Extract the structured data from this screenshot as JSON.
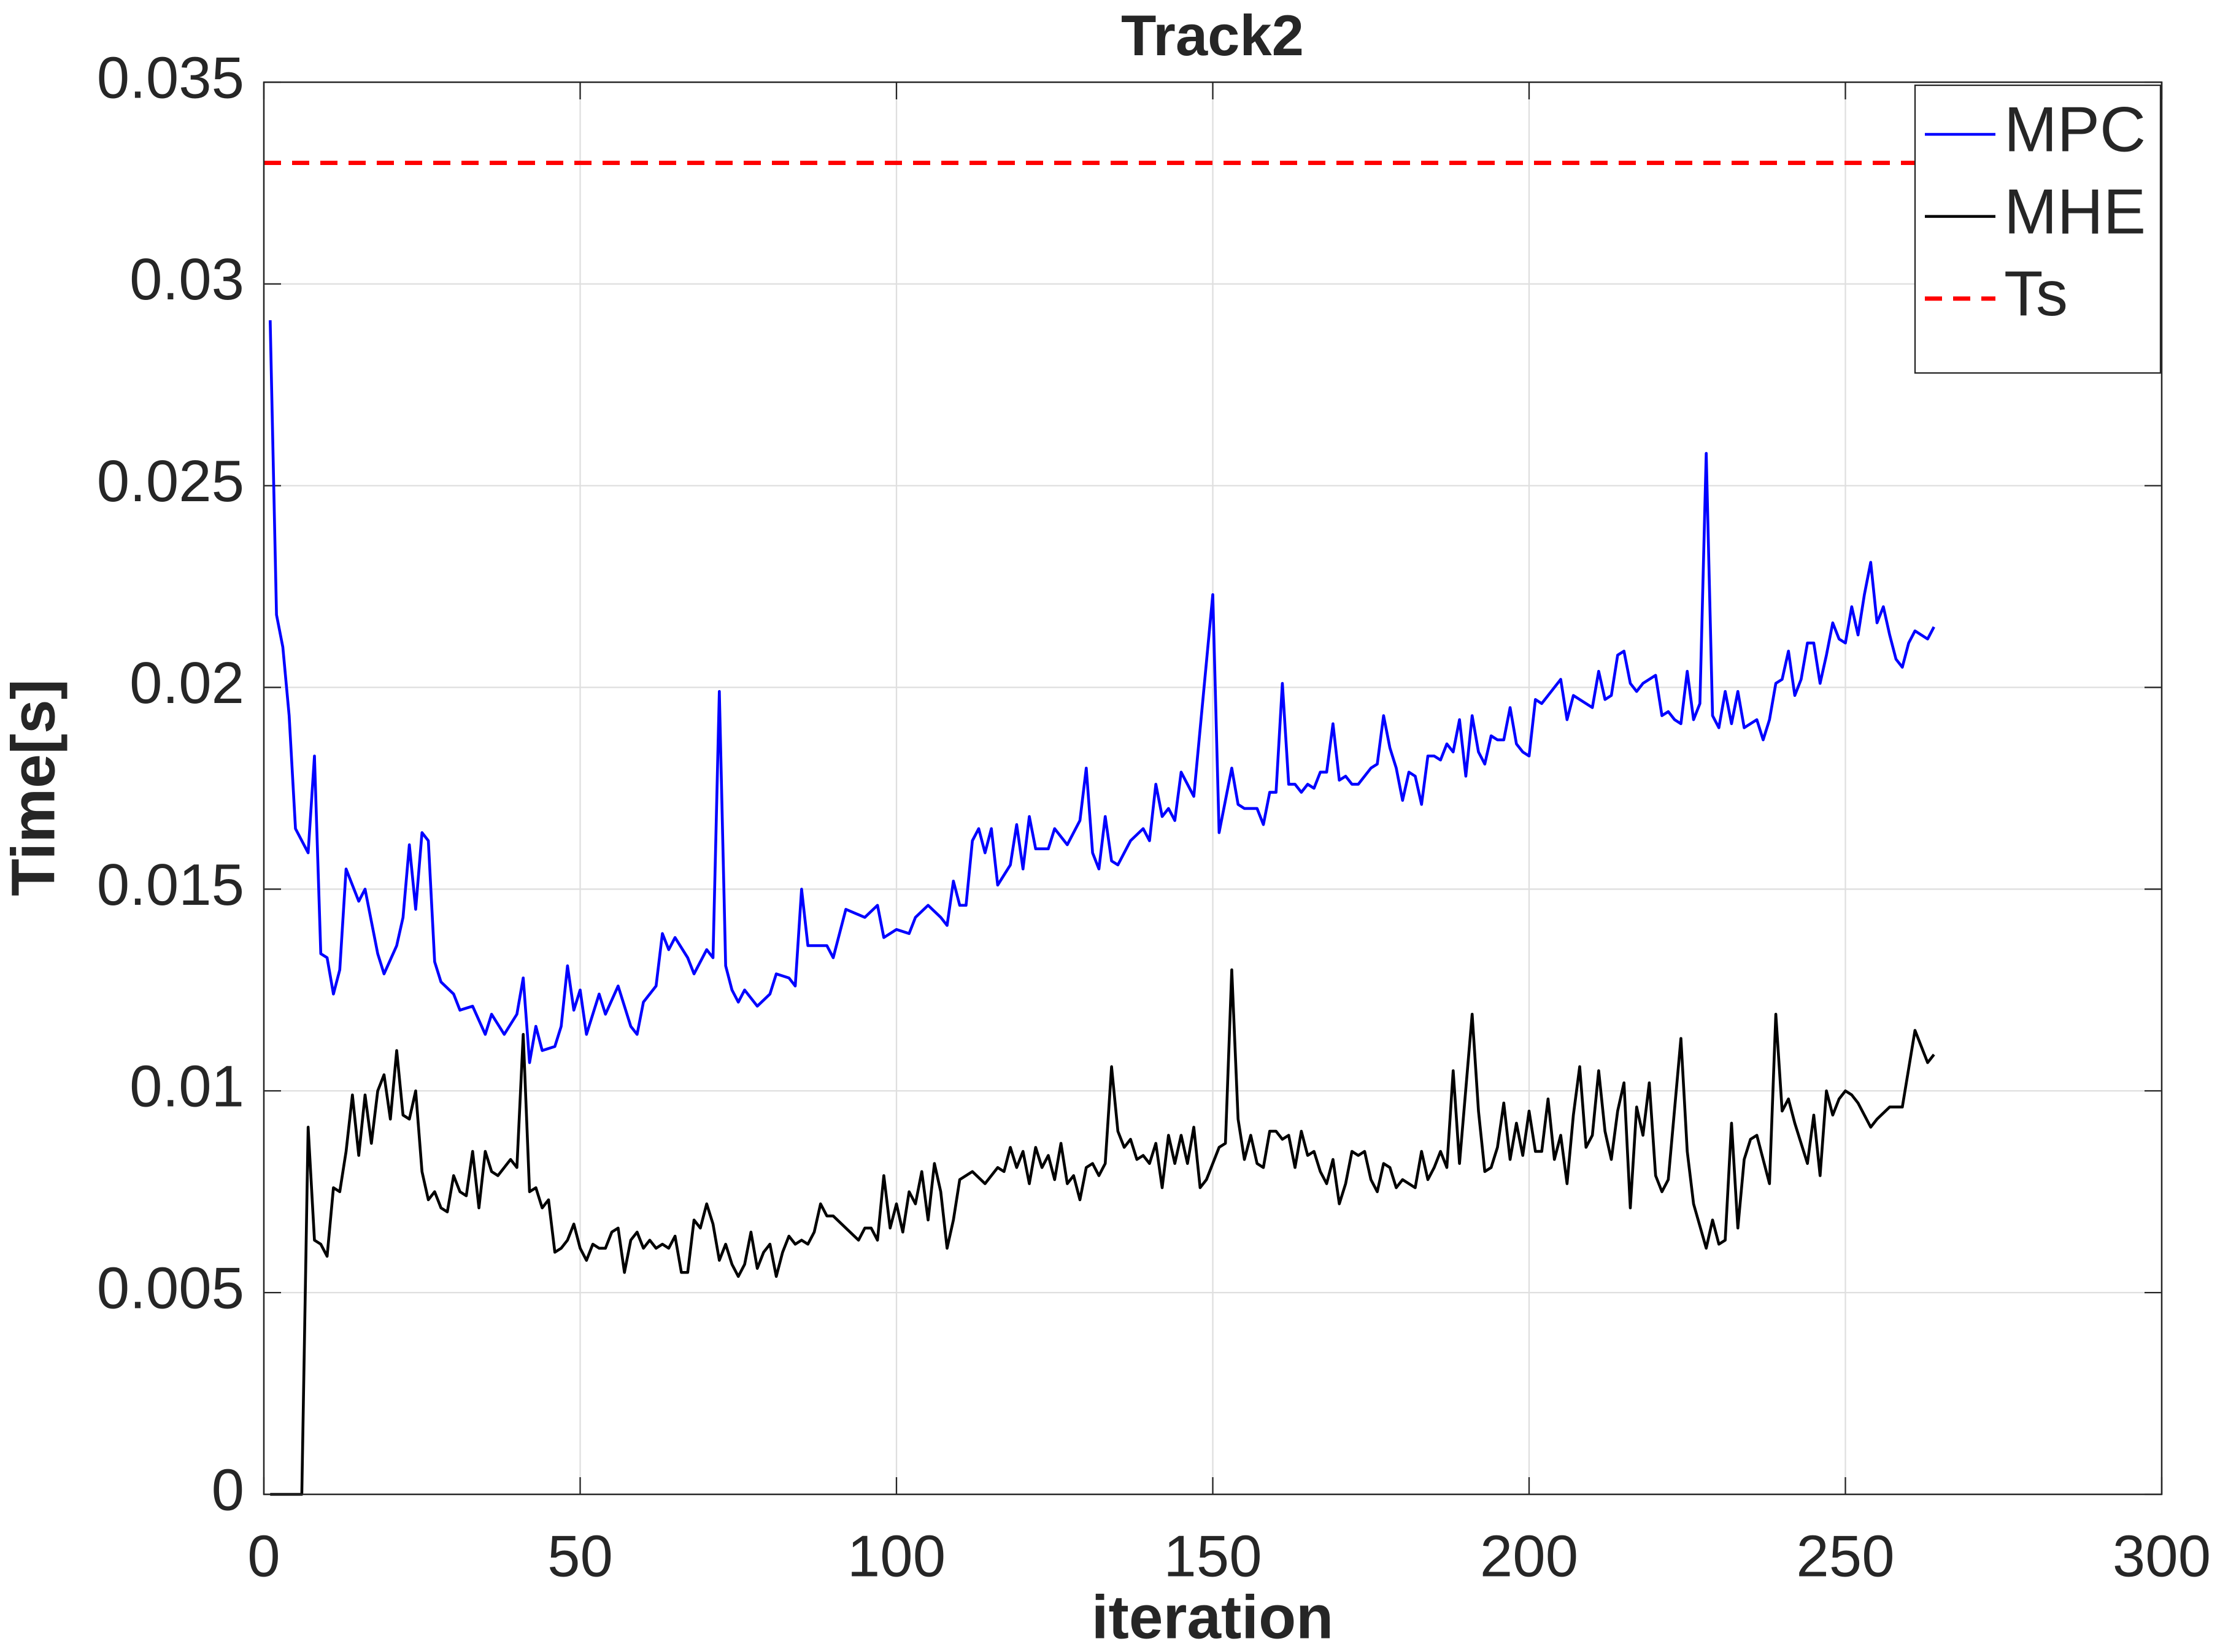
{
  "chart_data": {
    "type": "line",
    "title": "Track2",
    "xlabel": "iteration",
    "ylabel": "Time[s]",
    "xlim": [
      0,
      300
    ],
    "xticks": [
      0,
      50,
      100,
      150,
      200,
      250,
      300
    ],
    "ylim": [
      0,
      0.035
    ],
    "yticks": [
      0,
      0.005,
      0.01,
      0.015,
      0.02,
      0.025,
      0.03,
      0.035
    ],
    "grid": true,
    "legend": "northeast",
    "series": [
      {
        "name": "MPC",
        "color": "#0000ff",
        "dashed": false,
        "x": [
          1,
          2,
          3,
          4,
          5,
          7,
          8,
          9,
          10,
          11,
          12,
          13,
          15,
          16,
          18,
          19,
          21,
          22,
          23,
          24,
          25,
          26,
          27,
          28,
          30,
          31,
          33,
          35,
          36,
          38,
          40,
          41,
          42,
          43,
          44,
          46,
          47,
          48,
          49,
          50,
          51,
          53,
          54,
          56,
          58,
          59,
          60,
          62,
          63,
          64,
          65,
          67,
          68,
          70,
          71,
          72,
          73,
          74,
          75,
          76,
          78,
          80,
          81,
          83,
          84,
          85,
          86,
          89,
          90,
          92,
          95,
          97,
          98,
          100,
          102,
          103,
          105,
          107,
          108,
          109,
          110,
          111,
          112,
          113,
          114,
          115,
          116,
          118,
          119,
          120,
          121,
          122,
          124,
          125,
          127,
          129,
          130,
          131,
          132,
          133,
          134,
          135,
          137,
          139,
          140,
          141,
          142,
          143,
          144,
          145,
          146,
          147,
          150,
          151,
          152,
          153,
          154,
          155,
          157,
          158,
          159,
          160,
          161,
          162,
          163,
          164,
          165,
          166,
          167,
          168,
          169,
          170,
          171,
          172,
          173,
          175,
          176,
          177,
          178,
          179,
          180,
          181,
          182,
          183,
          184,
          185,
          186,
          187,
          188,
          189,
          190,
          191,
          192,
          193,
          194,
          195,
          196,
          197,
          198,
          199,
          200,
          201,
          202,
          205,
          206,
          207,
          210,
          211,
          212,
          213,
          214,
          215,
          216,
          217,
          218,
          220,
          221,
          222,
          223,
          224,
          225,
          226,
          227,
          228,
          229,
          230,
          231,
          232,
          233,
          234,
          236,
          237,
          238,
          239,
          240,
          241,
          242,
          243,
          244,
          245,
          246,
          247,
          248,
          249,
          250,
          251,
          252,
          253,
          254,
          255,
          256,
          257,
          258,
          259,
          260,
          261,
          262,
          263,
          264
        ],
        "values": [
          0.0291,
          0.0218,
          0.021,
          0.0193,
          0.0165,
          0.0159,
          0.0183,
          0.0134,
          0.0133,
          0.0124,
          0.013,
          0.0155,
          0.0147,
          0.015,
          0.0134,
          0.0129,
          0.0136,
          0.0143,
          0.0161,
          0.0145,
          0.0164,
          0.0162,
          0.0132,
          0.0127,
          0.0124,
          0.012,
          0.0121,
          0.0114,
          0.0119,
          0.0114,
          0.0119,
          0.0128,
          0.0107,
          0.0116,
          0.011,
          0.0111,
          0.0116,
          0.0131,
          0.012,
          0.0125,
          0.0114,
          0.0124,
          0.0119,
          0.0126,
          0.0116,
          0.0114,
          0.0122,
          0.0126,
          0.0139,
          0.0135,
          0.0138,
          0.0133,
          0.0129,
          0.0135,
          0.0133,
          0.0199,
          0.0131,
          0.0125,
          0.0122,
          0.0125,
          0.0121,
          0.0124,
          0.0129,
          0.0128,
          0.0126,
          0.015,
          0.0136,
          0.0136,
          0.0133,
          0.0145,
          0.0143,
          0.0146,
          0.0138,
          0.014,
          0.0139,
          0.0143,
          0.0146,
          0.0143,
          0.0141,
          0.0152,
          0.0146,
          0.0146,
          0.0162,
          0.0165,
          0.0159,
          0.0165,
          0.0151,
          0.0156,
          0.0166,
          0.0155,
          0.0168,
          0.016,
          0.016,
          0.0165,
          0.0161,
          0.0167,
          0.018,
          0.0159,
          0.0155,
          0.0168,
          0.0157,
          0.0156,
          0.0162,
          0.0165,
          0.0162,
          0.0176,
          0.0168,
          0.017,
          0.0167,
          0.0179,
          0.0176,
          0.0173,
          0.0223,
          0.0164,
          0.0172,
          0.018,
          0.0171,
          0.017,
          0.017,
          0.0166,
          0.0174,
          0.0174,
          0.0201,
          0.0176,
          0.0176,
          0.0174,
          0.0176,
          0.0175,
          0.0179,
          0.0179,
          0.0191,
          0.0177,
          0.0178,
          0.0176,
          0.0176,
          0.018,
          0.0181,
          0.0193,
          0.0185,
          0.018,
          0.0172,
          0.0179,
          0.0178,
          0.0171,
          0.0183,
          0.0183,
          0.0182,
          0.0186,
          0.0184,
          0.0192,
          0.0178,
          0.0193,
          0.0184,
          0.0181,
          0.0188,
          0.0187,
          0.0187,
          0.0195,
          0.0186,
          0.0184,
          0.0183,
          0.0197,
          0.0196,
          0.0202,
          0.0192,
          0.0198,
          0.0195,
          0.0204,
          0.0197,
          0.0198,
          0.0208,
          0.0209,
          0.0201,
          0.0199,
          0.0201,
          0.0203,
          0.0193,
          0.0194,
          0.0192,
          0.0191,
          0.0204,
          0.0192,
          0.0196,
          0.0258,
          0.0193,
          0.019,
          0.0199,
          0.0191,
          0.0199,
          0.019,
          0.0192,
          0.0187,
          0.0192,
          0.0201,
          0.0202,
          0.0209,
          0.0198,
          0.0202,
          0.0211,
          0.0211,
          0.0201,
          0.0208,
          0.0216,
          0.0212,
          0.0211,
          0.022,
          0.0213,
          0.0223,
          0.0231,
          0.0216,
          0.022,
          0.0213,
          0.0207,
          0.0205,
          0.0211,
          0.0214,
          0.0213,
          0.0212,
          0.0215
        ]
      },
      {
        "name": "MHE",
        "color": "#000000",
        "dashed": false,
        "x": [
          1,
          6,
          7,
          8,
          9,
          10,
          11,
          12,
          13,
          14,
          15,
          16,
          17,
          18,
          19,
          20,
          21,
          22,
          23,
          24,
          25,
          26,
          27,
          28,
          29,
          30,
          31,
          32,
          33,
          34,
          35,
          36,
          37,
          38,
          39,
          40,
          41,
          42,
          43,
          44,
          45,
          46,
          47,
          48,
          49,
          50,
          51,
          52,
          53,
          54,
          55,
          56,
          57,
          58,
          59,
          60,
          61,
          62,
          63,
          64,
          65,
          66,
          67,
          68,
          69,
          70,
          71,
          72,
          73,
          74,
          75,
          76,
          77,
          78,
          79,
          80,
          81,
          82,
          83,
          84,
          85,
          86,
          87,
          88,
          89,
          90,
          92,
          94,
          95,
          96,
          97,
          98,
          99,
          100,
          101,
          102,
          103,
          104,
          105,
          106,
          107,
          108,
          109,
          110,
          112,
          114,
          116,
          117,
          118,
          119,
          120,
          121,
          122,
          123,
          124,
          125,
          126,
          127,
          128,
          129,
          130,
          131,
          132,
          133,
          134,
          135,
          136,
          137,
          138,
          139,
          140,
          141,
          142,
          143,
          144,
          145,
          146,
          147,
          148,
          149,
          151,
          152,
          153,
          154,
          155,
          156,
          157,
          158,
          159,
          160,
          161,
          162,
          163,
          164,
          165,
          166,
          167,
          168,
          169,
          170,
          171,
          172,
          173,
          174,
          175,
          176,
          177,
          178,
          179,
          180,
          181,
          182,
          183,
          184,
          185,
          186,
          187,
          188,
          189,
          191,
          192,
          193,
          194,
          195,
          196,
          197,
          198,
          199,
          200,
          201,
          202,
          203,
          204,
          205,
          206,
          207,
          208,
          209,
          210,
          211,
          212,
          213,
          214,
          215,
          216,
          217,
          218,
          219,
          220,
          221,
          222,
          224,
          225,
          226,
          228,
          229,
          230,
          231,
          232,
          233,
          234,
          235,
          236,
          238,
          239,
          240,
          241,
          242,
          243,
          244,
          245,
          246,
          247,
          248,
          249,
          250,
          251,
          252,
          254,
          255,
          257,
          259,
          261,
          263,
          264
        ],
        "values": [
          0,
          0,
          0.0091,
          0.0063,
          0.0062,
          0.0059,
          0.0076,
          0.0075,
          0.0085,
          0.0099,
          0.0084,
          0.0099,
          0.0087,
          0.01,
          0.0104,
          0.0093,
          0.011,
          0.0094,
          0.0093,
          0.01,
          0.008,
          0.0073,
          0.0075,
          0.0071,
          0.007,
          0.0079,
          0.0075,
          0.0074,
          0.0085,
          0.0071,
          0.0085,
          0.008,
          0.0079,
          0.0081,
          0.0083,
          0.0081,
          0.0114,
          0.0075,
          0.0076,
          0.0071,
          0.0073,
          0.006,
          0.0061,
          0.0063,
          0.0067,
          0.0061,
          0.0058,
          0.0062,
          0.0061,
          0.0061,
          0.0065,
          0.0066,
          0.0055,
          0.0063,
          0.0065,
          0.0061,
          0.0063,
          0.0061,
          0.0062,
          0.0061,
          0.0064,
          0.0055,
          0.0055,
          0.0068,
          0.0066,
          0.0072,
          0.0067,
          0.0058,
          0.0062,
          0.0057,
          0.0054,
          0.0057,
          0.0065,
          0.0056,
          0.006,
          0.0062,
          0.0054,
          0.006,
          0.0064,
          0.0062,
          0.0063,
          0.0062,
          0.0065,
          0.0072,
          0.0069,
          0.0069,
          0.0066,
          0.0063,
          0.0066,
          0.0066,
          0.0063,
          0.0079,
          0.0066,
          0.0072,
          0.0065,
          0.0075,
          0.0072,
          0.008,
          0.0068,
          0.0082,
          0.0075,
          0.0061,
          0.0068,
          0.0078,
          0.008,
          0.0077,
          0.0081,
          0.008,
          0.0086,
          0.0081,
          0.0085,
          0.0077,
          0.0086,
          0.0081,
          0.0084,
          0.0078,
          0.0087,
          0.0077,
          0.0079,
          0.0073,
          0.0081,
          0.0082,
          0.0079,
          0.0082,
          0.0106,
          0.009,
          0.0086,
          0.0088,
          0.0083,
          0.0084,
          0.0082,
          0.0087,
          0.0076,
          0.0089,
          0.0082,
          0.0089,
          0.0082,
          0.0091,
          0.0076,
          0.0078,
          0.0086,
          0.0087,
          0.013,
          0.0093,
          0.0083,
          0.0089,
          0.0082,
          0.0081,
          0.009,
          0.009,
          0.0088,
          0.0089,
          0.0081,
          0.009,
          0.0084,
          0.0085,
          0.008,
          0.0077,
          0.0083,
          0.0072,
          0.0077,
          0.0085,
          0.0084,
          0.0085,
          0.0078,
          0.0075,
          0.0082,
          0.0081,
          0.0076,
          0.0078,
          0.0077,
          0.0076,
          0.0085,
          0.0078,
          0.0081,
          0.0085,
          0.0081,
          0.0105,
          0.0082,
          0.0119,
          0.0095,
          0.008,
          0.0081,
          0.0086,
          0.0097,
          0.0083,
          0.0092,
          0.0084,
          0.0095,
          0.0085,
          0.0085,
          0.0098,
          0.0083,
          0.0089,
          0.0077,
          0.0094,
          0.0106,
          0.0086,
          0.0089,
          0.0105,
          0.009,
          0.0083,
          0.0095,
          0.0102,
          0.0071,
          0.0096,
          0.0089,
          0.0102,
          0.0079,
          0.0075,
          0.0078,
          0.0113,
          0.0085,
          0.0072,
          0.0061,
          0.0068,
          0.0062,
          0.0063,
          0.0092,
          0.0066,
          0.0083,
          0.0088,
          0.0089,
          0.0077,
          0.0119,
          0.0095,
          0.0098,
          0.0092,
          0.0087,
          0.0082,
          0.0094,
          0.0079,
          0.01,
          0.0094,
          0.0098,
          0.01,
          0.0099,
          0.0097,
          0.0091,
          0.0093,
          0.0096,
          0.0096,
          0.0115,
          0.0107,
          0.0109
        ]
      },
      {
        "name": "Ts",
        "color": "#ff0000",
        "dashed": true,
        "x": [
          0,
          300
        ],
        "values": [
          0.033,
          0.033
        ]
      }
    ]
  }
}
